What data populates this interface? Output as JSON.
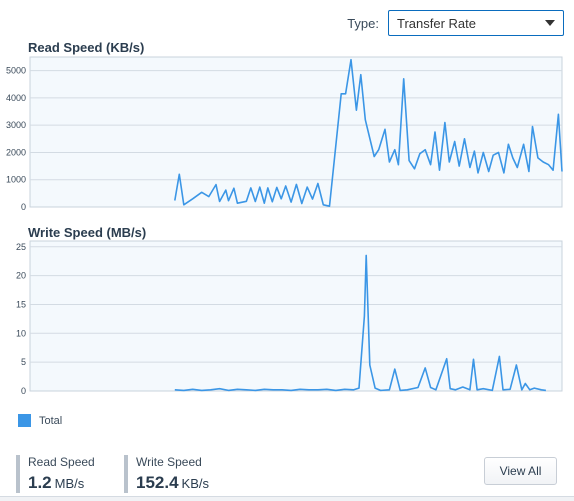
{
  "type_selector": {
    "label": "Type:",
    "value": "Transfer Rate"
  },
  "charts": [
    {
      "title": "Read Speed (KB/s)",
      "ylim": [
        0,
        5500
      ],
      "yticks": [
        "0",
        "1000",
        "2000",
        "3000",
        "4000",
        "5000"
      ],
      "ytick_values": [
        0,
        1000,
        2000,
        3000,
        4000,
        5000
      ],
      "color": "#3b96e6",
      "series": [
        {
          "name": "Total",
          "points": [
            [
              0.0,
              240
            ],
            [
              0.5,
              1200
            ],
            [
              1.0,
              80
            ],
            [
              2.0,
              300
            ],
            [
              3.0,
              540
            ],
            [
              3.8,
              380
            ],
            [
              4.6,
              820
            ],
            [
              5.0,
              200
            ],
            [
              5.7,
              620
            ],
            [
              6.0,
              230
            ],
            [
              6.6,
              690
            ],
            [
              7.0,
              140
            ],
            [
              8.0,
              210
            ],
            [
              8.5,
              700
            ],
            [
              9.0,
              200
            ],
            [
              9.5,
              730
            ],
            [
              10.0,
              140
            ],
            [
              10.4,
              700
            ],
            [
              10.9,
              190
            ],
            [
              11.4,
              720
            ],
            [
              11.9,
              300
            ],
            [
              12.4,
              770
            ],
            [
              13.0,
              180
            ],
            [
              13.6,
              830
            ],
            [
              14.2,
              130
            ],
            [
              14.8,
              730
            ],
            [
              15.4,
              290
            ],
            [
              16.0,
              860
            ],
            [
              16.6,
              80
            ],
            [
              17.3,
              30
            ],
            [
              18.6,
              4150
            ],
            [
              19.1,
              4150
            ],
            [
              19.7,
              5400
            ],
            [
              20.3,
              3550
            ],
            [
              20.8,
              4850
            ],
            [
              21.3,
              3200
            ],
            [
              22.3,
              1850
            ],
            [
              22.8,
              2100
            ],
            [
              23.5,
              2850
            ],
            [
              24.0,
              1650
            ],
            [
              24.6,
              2100
            ],
            [
              25.0,
              1550
            ],
            [
              25.6,
              4700
            ],
            [
              26.2,
              1700
            ],
            [
              26.8,
              1400
            ],
            [
              27.4,
              1950
            ],
            [
              28.0,
              2100
            ],
            [
              28.6,
              1550
            ],
            [
              29.1,
              2750
            ],
            [
              29.6,
              1350
            ],
            [
              30.2,
              3100
            ],
            [
              30.7,
              1650
            ],
            [
              31.3,
              2400
            ],
            [
              31.8,
              1500
            ],
            [
              32.4,
              2500
            ],
            [
              33.0,
              1450
            ],
            [
              33.5,
              2050
            ],
            [
              33.9,
              1250
            ],
            [
              34.5,
              2000
            ],
            [
              35.1,
              1300
            ],
            [
              35.6,
              1900
            ],
            [
              36.2,
              2000
            ],
            [
              36.8,
              1250
            ],
            [
              37.3,
              2300
            ],
            [
              37.8,
              1800
            ],
            [
              38.3,
              1450
            ],
            [
              39.0,
              2300
            ],
            [
              39.6,
              1300
            ],
            [
              40.0,
              2950
            ],
            [
              40.6,
              1800
            ],
            [
              41.2,
              1650
            ],
            [
              41.8,
              1550
            ],
            [
              42.3,
              1350
            ],
            [
              42.9,
              3400
            ],
            [
              43.3,
              1300
            ]
          ]
        }
      ]
    },
    {
      "title": "Write Speed (MB/s)",
      "ylim": [
        0,
        26
      ],
      "yticks": [
        "0",
        "5",
        "10",
        "15",
        "20",
        "25"
      ],
      "ytick_values": [
        0,
        5,
        10,
        15,
        20,
        25
      ],
      "color": "#3b96e6",
      "series": [
        {
          "name": "Total",
          "points": [
            [
              0.0,
              0.2
            ],
            [
              1.0,
              0.1
            ],
            [
              2.0,
              0.3
            ],
            [
              3.0,
              0.1
            ],
            [
              4.0,
              0.2
            ],
            [
              5.0,
              0.4
            ],
            [
              6.0,
              0.1
            ],
            [
              7.0,
              0.3
            ],
            [
              8.0,
              0.2
            ],
            [
              9.0,
              0.1
            ],
            [
              10.0,
              0.3
            ],
            [
              11.0,
              0.2
            ],
            [
              12.0,
              0.2
            ],
            [
              13.0,
              0.1
            ],
            [
              14.0,
              0.3
            ],
            [
              15.0,
              0.2
            ],
            [
              16.0,
              0.2
            ],
            [
              17.0,
              0.3
            ],
            [
              18.0,
              0.1
            ],
            [
              19.0,
              0.3
            ],
            [
              20.0,
              0.2
            ],
            [
              20.6,
              0.5
            ],
            [
              21.2,
              13.0
            ],
            [
              21.4,
              23.5
            ],
            [
              21.8,
              4.5
            ],
            [
              22.4,
              0.5
            ],
            [
              23.0,
              0.1
            ],
            [
              24.0,
              0.2
            ],
            [
              24.6,
              3.8
            ],
            [
              25.2,
              0.1
            ],
            [
              26.0,
              0.2
            ],
            [
              27.2,
              0.6
            ],
            [
              28.0,
              4.0
            ],
            [
              28.6,
              0.6
            ],
            [
              29.2,
              0.2
            ],
            [
              30.4,
              5.6
            ],
            [
              30.8,
              0.4
            ],
            [
              31.4,
              0.2
            ],
            [
              32.2,
              0.7
            ],
            [
              33.0,
              0.2
            ],
            [
              33.4,
              5.5
            ],
            [
              33.8,
              0.2
            ],
            [
              34.5,
              0.4
            ],
            [
              35.5,
              0.1
            ],
            [
              36.3,
              6.0
            ],
            [
              36.7,
              0.2
            ],
            [
              37.5,
              0.3
            ],
            [
              38.2,
              4.5
            ],
            [
              38.8,
              0.2
            ],
            [
              39.2,
              1.3
            ],
            [
              39.7,
              0.2
            ],
            [
              40.2,
              0.5
            ],
            [
              41.0,
              0.2
            ],
            [
              41.5,
              0.1
            ]
          ]
        }
      ]
    }
  ],
  "chart_data": [
    {
      "type": "line",
      "title": "Read Speed (KB/s)",
      "xlabel": "",
      "ylabel": "",
      "ylim": [
        0,
        5500
      ],
      "grid": true,
      "series": [
        {
          "name": "Total"
        }
      ]
    },
    {
      "type": "line",
      "title": "Write Speed (MB/s)",
      "xlabel": "",
      "ylabel": "",
      "ylim": [
        0,
        26
      ],
      "grid": true,
      "series": [
        {
          "name": "Total"
        }
      ]
    }
  ],
  "legend": {
    "label": "Total",
    "color": "#3b96e6"
  },
  "stats": [
    {
      "label": "Read Speed",
      "value": "1.2",
      "unit": "MB/s"
    },
    {
      "label": "Write Speed",
      "value": "152.4",
      "unit": "KB/s"
    }
  ],
  "view_all_label": "View All"
}
